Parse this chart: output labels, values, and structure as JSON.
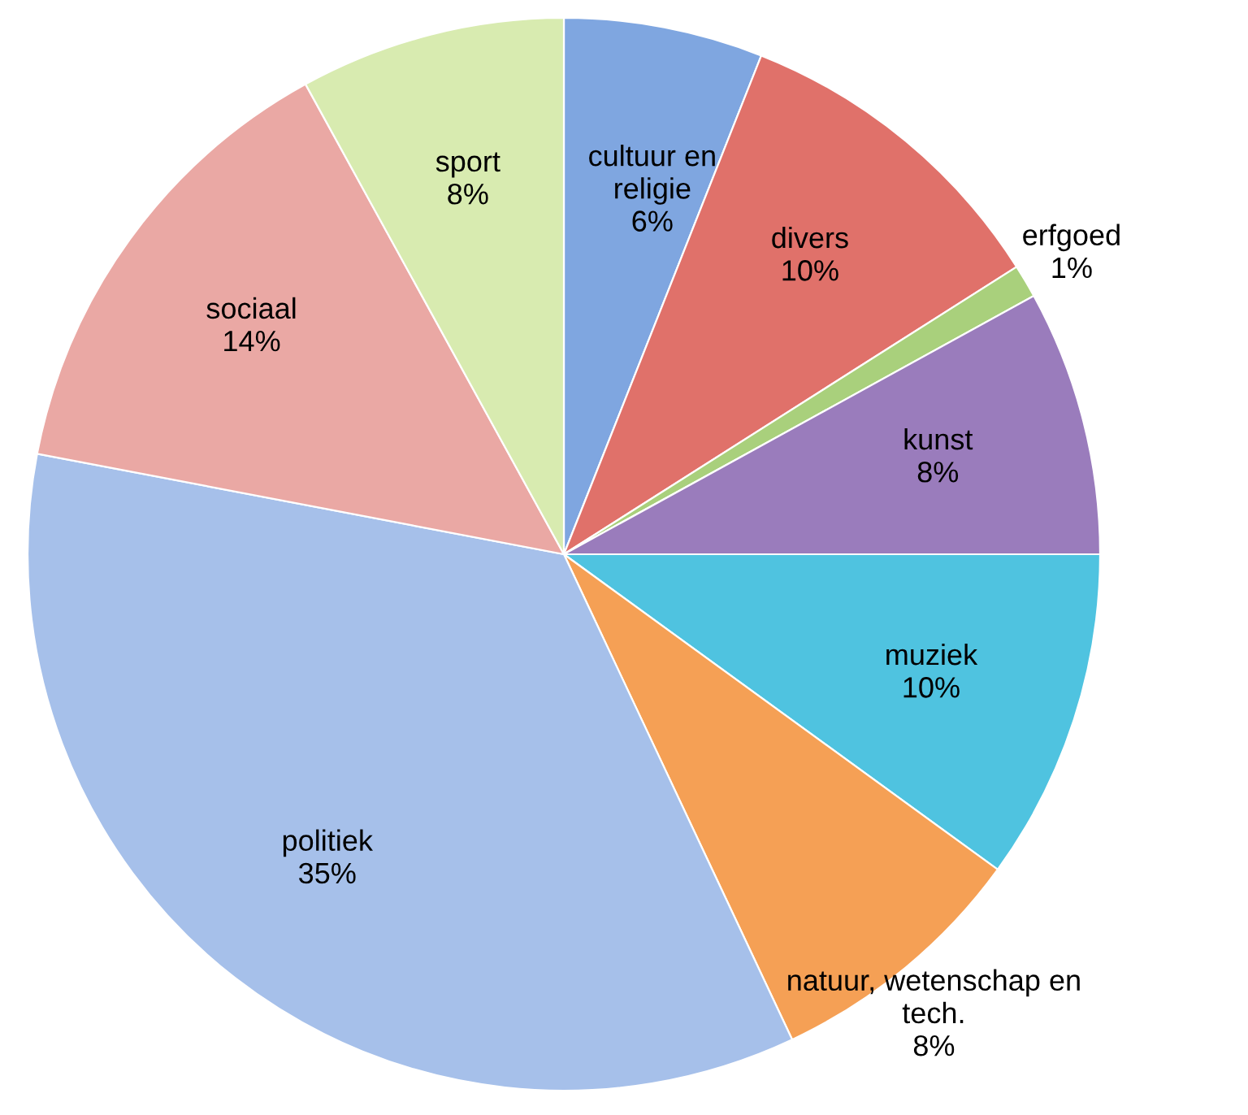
{
  "chart_data": {
    "type": "pie",
    "categories": [
      "cultuur en religie",
      "divers",
      "erfgoed",
      "kunst",
      "muziek",
      "natuur, wetenschap en tech.",
      "politiek",
      "sociaal",
      "sport"
    ],
    "values": [
      6,
      10,
      1,
      8,
      10,
      8,
      35,
      14,
      8
    ],
    "colors": [
      "#7fa6e0",
      "#e0716a",
      "#a9d07c",
      "#9a7cbc",
      "#4fc3e0",
      "#f5a055",
      "#a6c0ea",
      "#eaa8a4",
      "#d8ebb0"
    ],
    "value_labels": [
      "6%",
      "10%",
      "1%",
      "8%",
      "10%",
      "8%",
      "35%",
      "14%",
      "8%"
    ],
    "legend": false
  }
}
